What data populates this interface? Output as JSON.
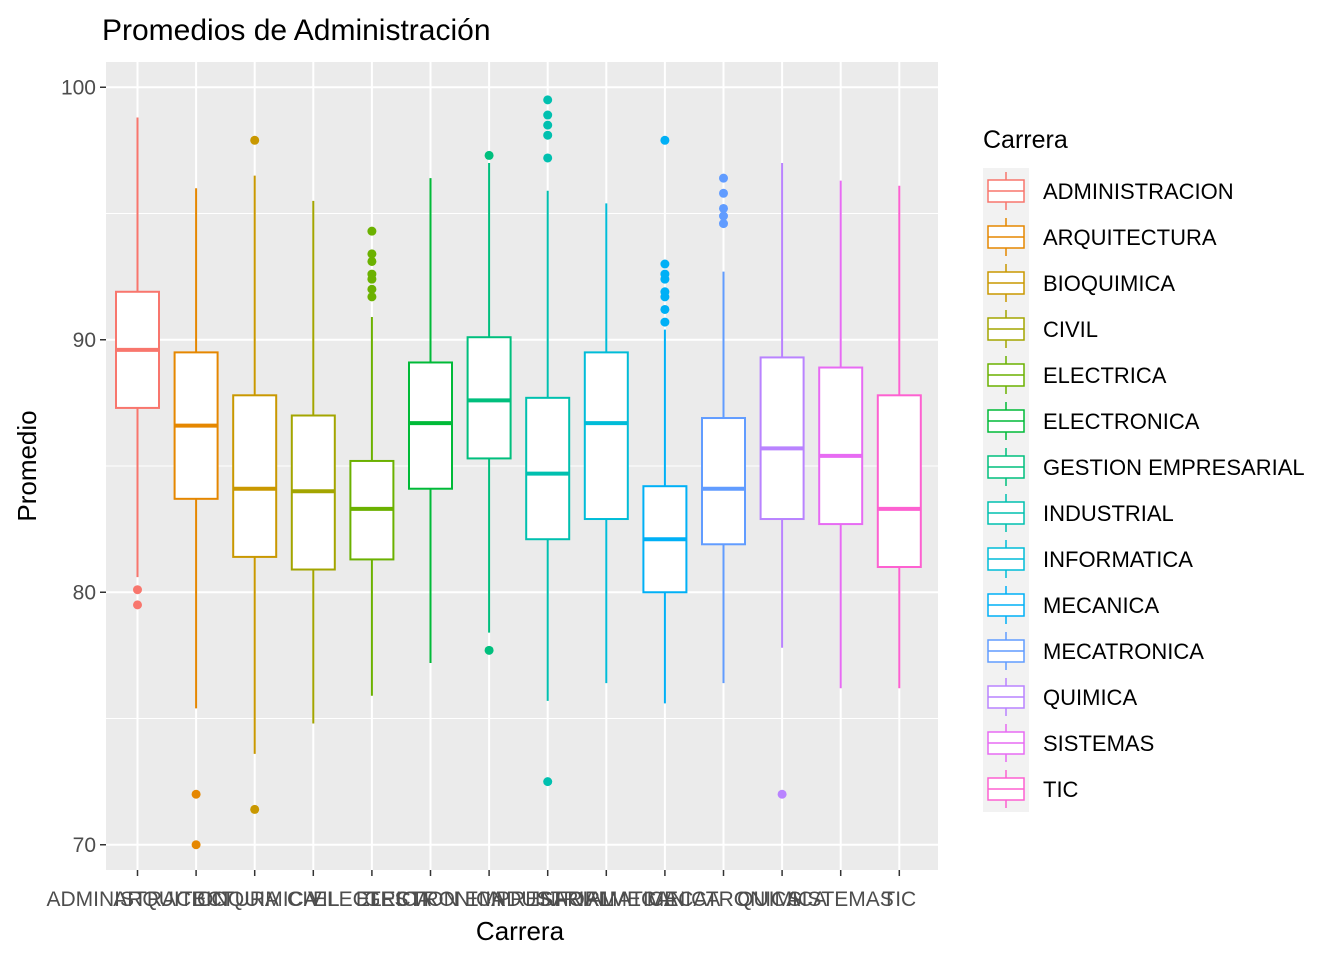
{
  "chart_data": {
    "type": "box",
    "title": "Promedios de Administración",
    "xlabel": "Carrera",
    "ylabel": "Promedio",
    "ylim": [
      69,
      101
    ],
    "yticks": [
      70,
      80,
      90,
      100
    ],
    "grid": true,
    "legend_placement": "right",
    "legend_title": "Carrera",
    "categories": [
      "ADMINISTRACION",
      "ARQUITECTURA",
      "BIOQUIMICA",
      "CIVIL",
      "ELECTRICA",
      "ELECTRONICA",
      "GESTION EMPRESARIAL",
      "INDUSTRIAL",
      "INFORMATICA",
      "MECANICA",
      "MECATRONICA",
      "QUIMICA",
      "SISTEMAS",
      "TIC"
    ],
    "x_tick_labels": [
      "ADMINISTRACION",
      "ARQUITECTURA",
      "BIOQUIMICA",
      "CIVIL",
      "ELECTRICA",
      "ELECTRONICA",
      "GESTION EMPRESARIAL",
      "INDUSTRIAL",
      "INFORMATICA",
      "MECANICA",
      "MECATRONICA",
      "QUIMICA",
      "SISTEMAS",
      "TIC"
    ],
    "colors": [
      "#F8766D",
      "#E58700",
      "#C99800",
      "#A3A500",
      "#6BB100",
      "#00BA38",
      "#00BF7D",
      "#00C0AF",
      "#00BCD8",
      "#00B0F6",
      "#619CFF",
      "#B983FF",
      "#E76BF3",
      "#FD61D1",
      "#FF67A4"
    ],
    "series": [
      {
        "name": "ADMINISTRACION",
        "color": "#F8766D",
        "min": 80.6,
        "q1": 87.3,
        "median": 89.6,
        "q3": 91.9,
        "max": 98.8,
        "outliers": [
          80.1,
          79.5
        ]
      },
      {
        "name": "ARQUITECTURA",
        "color": "#E58700",
        "min": 75.4,
        "q1": 83.7,
        "median": 86.6,
        "q3": 89.5,
        "max": 96.0,
        "outliers": [
          72.0,
          70.0
        ]
      },
      {
        "name": "BIOQUIMICA",
        "color": "#C99800",
        "min": 73.6,
        "q1": 81.4,
        "median": 84.1,
        "q3": 87.8,
        "max": 96.5,
        "outliers": [
          97.9,
          71.4
        ]
      },
      {
        "name": "CIVIL",
        "color": "#A3A500",
        "min": 74.8,
        "q1": 80.9,
        "median": 84.0,
        "q3": 87.0,
        "max": 95.5,
        "outliers": []
      },
      {
        "name": "ELECTRICA",
        "color": "#6BB100",
        "min": 75.9,
        "q1": 81.3,
        "median": 83.3,
        "q3": 85.2,
        "max": 90.9,
        "outliers": [
          94.3,
          93.4,
          93.1,
          92.6,
          92.4,
          92.0,
          91.7
        ]
      },
      {
        "name": "ELECTRONICA",
        "color": "#00BA38",
        "min": 77.2,
        "q1": 84.1,
        "median": 86.7,
        "q3": 89.1,
        "max": 96.4,
        "outliers": []
      },
      {
        "name": "GESTION EMPRESARIAL",
        "color": "#00BF7D",
        "min": 78.4,
        "q1": 85.3,
        "median": 87.6,
        "q3": 90.1,
        "max": 97.0,
        "outliers": [
          97.3,
          77.7
        ]
      },
      {
        "name": "INDUSTRIAL",
        "color": "#00C0AF",
        "min": 75.7,
        "q1": 82.1,
        "median": 84.7,
        "q3": 87.7,
        "max": 95.9,
        "outliers": [
          99.5,
          98.9,
          98.5,
          98.1,
          97.2,
          72.5
        ]
      },
      {
        "name": "INFORMATICA",
        "color": "#00BCD8",
        "min": 76.4,
        "q1": 82.9,
        "median": 86.7,
        "q3": 89.5,
        "max": 95.4,
        "outliers": []
      },
      {
        "name": "MECANICA",
        "color": "#00B0F6",
        "min": 75.6,
        "q1": 80.0,
        "median": 82.1,
        "q3": 84.2,
        "max": 90.4,
        "outliers": [
          97.9,
          93.0,
          92.6,
          92.4,
          91.9,
          91.7,
          91.2,
          90.7
        ]
      },
      {
        "name": "MECATRONICA",
        "color": "#619CFF",
        "min": 76.4,
        "q1": 81.9,
        "median": 84.1,
        "q3": 86.9,
        "max": 92.7,
        "outliers": [
          96.4,
          95.8,
          95.2,
          94.9,
          94.6
        ]
      },
      {
        "name": "QUIMICA",
        "color": "#B983FF",
        "min": 77.8,
        "q1": 82.9,
        "median": 85.7,
        "q3": 89.3,
        "max": 97.0,
        "outliers": [
          72.0
        ]
      },
      {
        "name": "SISTEMAS",
        "color": "#E76BF3",
        "min": 76.2,
        "q1": 82.7,
        "median": 85.4,
        "q3": 88.9,
        "max": 96.3,
        "outliers": []
      },
      {
        "name": "TIC",
        "color": "#FD61D1",
        "min": 76.2,
        "q1": 81.0,
        "median": 83.3,
        "q3": 87.8,
        "max": 96.1,
        "outliers": []
      }
    ]
  }
}
